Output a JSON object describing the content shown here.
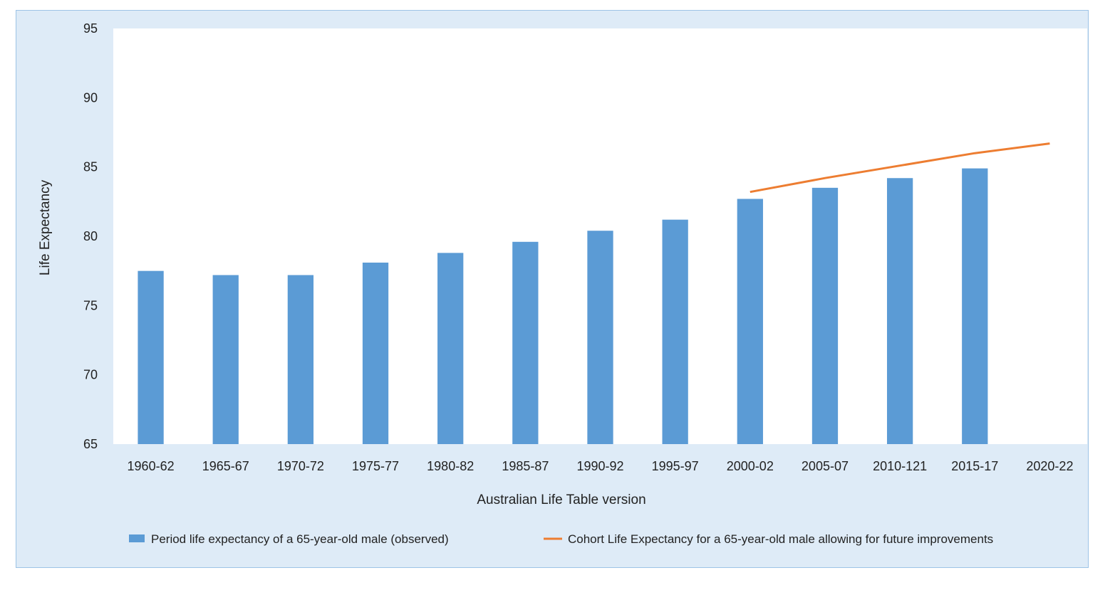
{
  "chart_data": {
    "type": "bar",
    "title": "",
    "xlabel": "Australian Life Table version",
    "ylabel": "Life Expectancy",
    "ylim": [
      65,
      95
    ],
    "yticks": [
      65,
      70,
      75,
      80,
      85,
      90,
      95
    ],
    "grid": false,
    "legend_position": "bottom",
    "categories": [
      "1960-62",
      "1965-67",
      "1970-72",
      "1975-77",
      "1980-82",
      "1985-87",
      "1990-92",
      "1995-97",
      "2000-02",
      "2005-07",
      "2010-121",
      "2015-17",
      "2020-22"
    ],
    "series": [
      {
        "name": "Period life expectancy of a 65-year-old male (observed)",
        "type": "bar",
        "color": "#5b9bd5",
        "values": [
          77.5,
          77.2,
          77.2,
          78.1,
          78.8,
          79.6,
          80.4,
          81.2,
          82.7,
          83.5,
          84.2,
          84.9,
          null
        ]
      },
      {
        "name": "Cohort Life Expectancy for a 65-year-old male allowing for future improvements",
        "type": "line",
        "color": "#ed7d31",
        "values": [
          null,
          null,
          null,
          null,
          null,
          null,
          null,
          null,
          83.2,
          84.2,
          85.1,
          86.0,
          86.7
        ]
      }
    ]
  }
}
